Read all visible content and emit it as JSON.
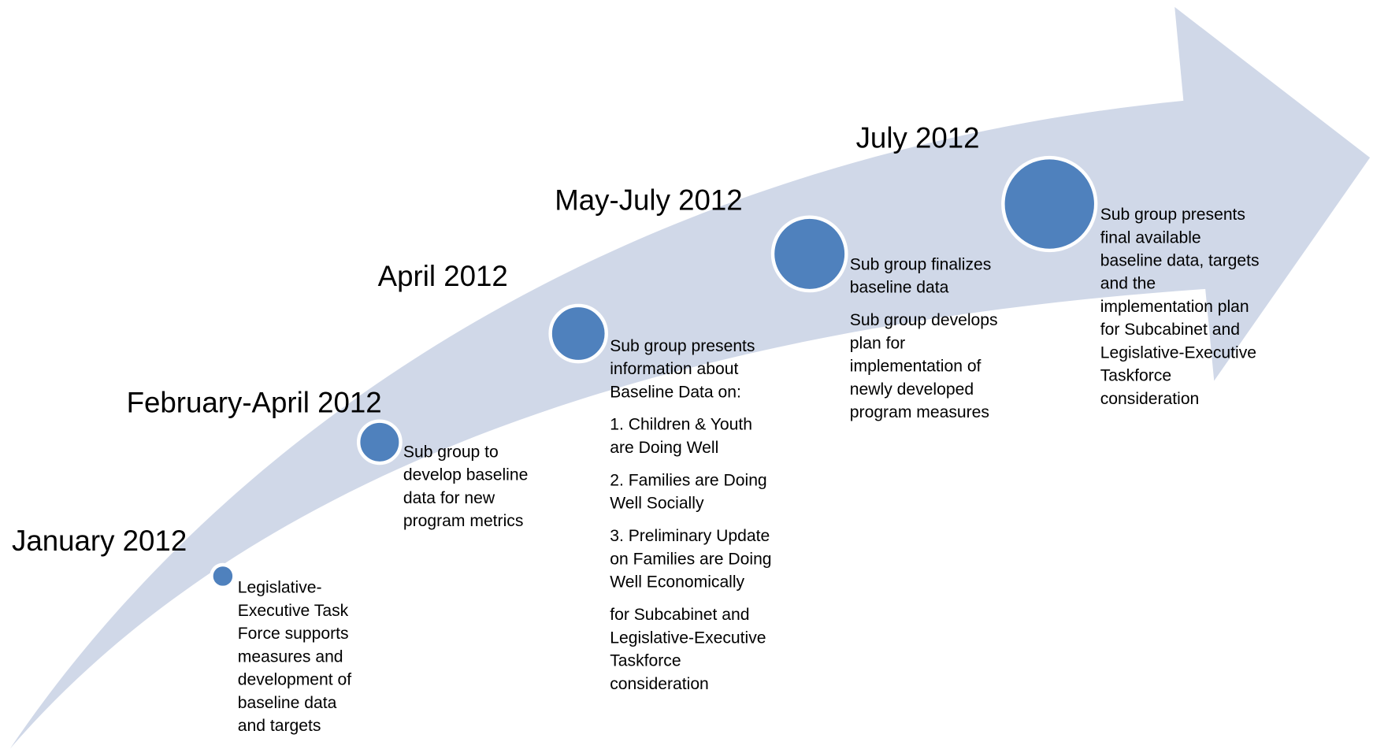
{
  "milestones": [
    {
      "date": "January 2012",
      "paragraphs": [
        [
          "Legislative-",
          "Executive Task",
          "Force supports",
          "measures and",
          "development of",
          "baseline data",
          "and targets"
        ]
      ]
    },
    {
      "date": "February-April 2012",
      "paragraphs": [
        [
          "Sub group to",
          "develop baseline",
          "data for new",
          "program metrics"
        ]
      ]
    },
    {
      "date": "April 2012",
      "paragraphs": [
        [
          "Sub group presents",
          "information about",
          "Baseline Data  on:"
        ],
        [
          "1.  Children & Youth",
          "are Doing Well"
        ],
        [
          "2.  Families are Doing",
          "Well Socially"
        ],
        [
          "3.  Preliminary Update",
          "on Families are Doing",
          "Well Economically"
        ],
        [
          "for Subcabinet and",
          "Legislative-Executive",
          "Taskforce",
          "consideration"
        ]
      ]
    },
    {
      "date": "May-July  2012",
      "paragraphs": [
        [
          "Sub group finalizes",
          "baseline data"
        ],
        [
          "Sub group develops",
          "plan for",
          "implementation of",
          "newly developed",
          "program measures"
        ]
      ]
    },
    {
      "date": "July 2012",
      "paragraphs": [
        [
          "Sub group presents",
          "final available",
          "baseline data, targets",
          "and the",
          "implementation plan",
          "for Subcabinet and",
          "Legislative-Executive",
          "Taskforce",
          "consideration"
        ]
      ]
    }
  ]
}
